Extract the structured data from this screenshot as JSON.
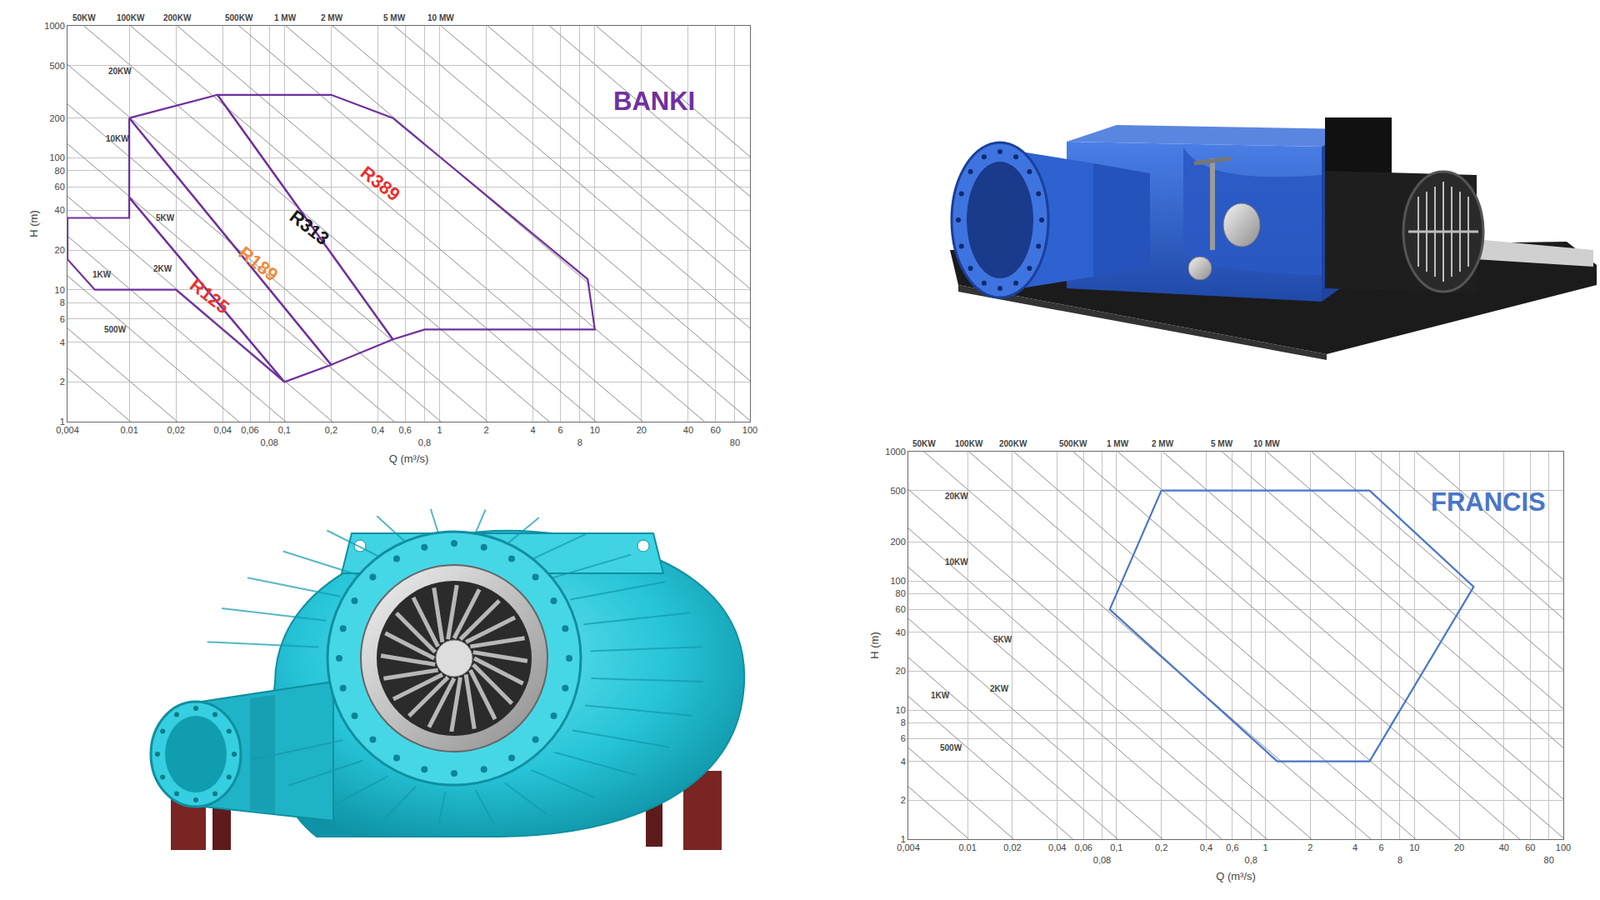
{
  "chart_data": [
    {
      "type": "line",
      "title": "BANKI",
      "color": "#7030a0",
      "xlabel": "Q (m³/s)",
      "ylabel": "H (m)",
      "log": true,
      "grid": true,
      "xlim": [
        0.004,
        100
      ],
      "ylim": [
        1,
        1000
      ],
      "xticks": [
        {
          "value": 0.004,
          "label": "0,004"
        },
        0.01,
        {
          "value": 0.02,
          "label": "0,02"
        },
        {
          "value": 0.04,
          "label": "0,04"
        },
        {
          "value": 0.06,
          "label": "0,06"
        },
        {
          "value": 0.08,
          "label": "0,08"
        },
        {
          "value": 0.1,
          "label": "0,1"
        },
        {
          "value": 0.2,
          "label": "0,2"
        },
        {
          "value": 0.4,
          "label": "0,4"
        },
        {
          "value": 0.6,
          "label": "0,6"
        },
        {
          "value": 0.8,
          "label": "0,8"
        },
        1,
        2,
        4,
        6,
        8,
        10,
        20,
        40,
        60,
        80,
        100
      ],
      "yticks": [
        1,
        2,
        4,
        6,
        8,
        10,
        20,
        40,
        60,
        80,
        100,
        200,
        500,
        1000
      ],
      "power_lines": [
        {
          "x": [
            1.02e-05,
            0.0102
          ],
          "y": [
            1000,
            1
          ]
        },
        {
          "x": [
            2.04e-05,
            0.0204
          ],
          "y": [
            1000,
            1
          ]
        },
        {
          "label": "500W",
          "x": [
            5.1e-05,
            0.051
          ],
          "y": [
            1000,
            1
          ],
          "label_at": [
            0.0081,
            5
          ]
        },
        {
          "label": "1KW",
          "x": [
            0.000102,
            0.102
          ],
          "y": [
            1000,
            1
          ],
          "label_at": [
            0.0067,
            13
          ]
        },
        {
          "label": "2KW",
          "x": [
            0.000204,
            0.204
          ],
          "y": [
            1000,
            1
          ],
          "label_at": [
            0.0165,
            14.5
          ]
        },
        {
          "label": "5KW",
          "x": [
            0.00051,
            0.51
          ],
          "y": [
            1000,
            1
          ],
          "label_at": [
            0.017,
            35
          ]
        },
        {
          "label": "10KW",
          "x": [
            0.00102,
            1.02
          ],
          "y": [
            1000,
            1
          ],
          "label_at": [
            0.0084,
            140
          ]
        },
        {
          "label": "20KW",
          "x": [
            0.00204,
            2.04
          ],
          "y": [
            1000,
            1
          ],
          "label_at": [
            0.0087,
            450
          ]
        },
        {
          "label": "50KW",
          "x": [
            0.0051,
            5.1
          ],
          "y": [
            1000,
            1
          ],
          "label_at": [
            0.0051,
            1000
          ]
        },
        {
          "label": "100KW",
          "x": [
            0.0102,
            10.2
          ],
          "y": [
            1000,
            1
          ],
          "label_at": [
            0.0102,
            1000
          ]
        },
        {
          "label": "200KW",
          "x": [
            0.0204,
            20.4
          ],
          "y": [
            1000,
            1
          ],
          "label_at": [
            0.0204,
            1000
          ]
        },
        {
          "label": "500KW",
          "x": [
            0.051,
            51
          ],
          "y": [
            1000,
            1
          ],
          "label_at": [
            0.051,
            1000
          ]
        },
        {
          "label": "1 MW",
          "x": [
            0.102,
            102
          ],
          "y": [
            1000,
            1
          ],
          "label_at": [
            0.102,
            1000
          ]
        },
        {
          "label": "2 MW",
          "x": [
            0.204,
            204
          ],
          "y": [
            1000,
            1
          ],
          "label_at": [
            0.204,
            1000
          ]
        },
        {
          "label": "5 MW",
          "x": [
            0.51,
            510
          ],
          "y": [
            1000,
            1
          ],
          "label_at": [
            0.51,
            1000
          ]
        },
        {
          "label": "10 MW",
          "x": [
            1.02,
            1020
          ],
          "y": [
            1000,
            1
          ],
          "label_at": [
            1.02,
            1000
          ]
        },
        {
          "x": [
            2.04,
            2040
          ],
          "y": [
            1000,
            1
          ]
        },
        {
          "x": [
            5.1,
            5100
          ],
          "y": [
            1000,
            1
          ]
        },
        {
          "x": [
            10.2,
            10200
          ],
          "y": [
            1000,
            1
          ]
        }
      ],
      "series": [
        {
          "name": "R125",
          "x": [
            0.004,
            0.01,
            0.01,
            0.1,
            0.02,
            0.006,
            0.004
          ],
          "y": [
            35,
            35,
            50,
            2,
            10,
            10,
            17
          ],
          "label": {
            "x": 0.033,
            "y": 8.9,
            "color": "#e8312f"
          }
        },
        {
          "name": "R189",
          "x": [
            0.01,
            0.01,
            0.2,
            0.1
          ],
          "y": [
            50,
            200,
            2.7,
            2
          ],
          "label": {
            "x": 0.068,
            "y": 15.8,
            "color": "#f08a3c"
          }
        },
        {
          "name": "R313",
          "x": [
            0.01,
            0.037,
            0.5,
            0.2
          ],
          "y": [
            200,
            300,
            4.2,
            2.7
          ],
          "label": {
            "x": 0.146,
            "y": 29.5,
            "color": "#1a1a1a"
          }
        },
        {
          "name": "R389",
          "x": [
            0.037,
            0.2,
            0.5,
            9,
            10,
            0.8,
            0.5
          ],
          "y": [
            300,
            300,
            200,
            12,
            5,
            5,
            4.2
          ],
          "label": {
            "x": 0.417,
            "y": 63.5,
            "color": "#e8312f"
          }
        }
      ]
    },
    {
      "type": "line",
      "title": "FRANCIS",
      "color": "#4a76c8",
      "xlabel": "Q (m³/s)",
      "ylabel": "H (m)",
      "log": true,
      "grid": true,
      "xlim": [
        0.004,
        100
      ],
      "ylim": [
        1,
        1000
      ],
      "xticks": [
        {
          "value": 0.004,
          "label": "0,004"
        },
        0.01,
        {
          "value": 0.02,
          "label": "0,02"
        },
        {
          "value": 0.04,
          "label": "0,04"
        },
        {
          "value": 0.06,
          "label": "0,06"
        },
        {
          "value": 0.08,
          "label": "0,08"
        },
        {
          "value": 0.1,
          "label": "0,1"
        },
        {
          "value": 0.2,
          "label": "0,2"
        },
        {
          "value": 0.4,
          "label": "0,4"
        },
        {
          "value": 0.6,
          "label": "0,6"
        },
        {
          "value": 0.8,
          "label": "0,8"
        },
        1,
        2,
        4,
        6,
        8,
        10,
        20,
        40,
        60,
        80,
        100
      ],
      "yticks": [
        1,
        2,
        4,
        6,
        8,
        10,
        20,
        40,
        60,
        80,
        100,
        200,
        500,
        1000
      ],
      "power_lines": [
        {
          "x": [
            1.02e-05,
            0.0102
          ],
          "y": [
            1000,
            1
          ]
        },
        {
          "x": [
            2.04e-05,
            0.0204
          ],
          "y": [
            1000,
            1
          ]
        },
        {
          "label": "500W",
          "x": [
            5.1e-05,
            0.051
          ],
          "y": [
            1000,
            1
          ],
          "label_at": [
            0.0078,
            5.1
          ]
        },
        {
          "label": "1KW",
          "x": [
            0.000102,
            0.102
          ],
          "y": [
            1000,
            1
          ],
          "label_at": [
            0.0066,
            13
          ]
        },
        {
          "label": "2KW",
          "x": [
            0.000204,
            0.204
          ],
          "y": [
            1000,
            1
          ],
          "label_at": [
            0.0165,
            14.6
          ]
        },
        {
          "label": "5KW",
          "x": [
            0.00051,
            0.51
          ],
          "y": [
            1000,
            1
          ],
          "label_at": [
            0.0173,
            35
          ]
        },
        {
          "label": "10KW",
          "x": [
            0.00102,
            1.02
          ],
          "y": [
            1000,
            1
          ],
          "label_at": [
            0.0084,
            140
          ]
        },
        {
          "label": "20KW",
          "x": [
            0.00204,
            2.04
          ],
          "y": [
            1000,
            1
          ],
          "label_at": [
            0.0084,
            450
          ]
        },
        {
          "label": "50KW",
          "x": [
            0.0051,
            5.1
          ],
          "y": [
            1000,
            1
          ],
          "label_at": [
            0.0051,
            1000
          ]
        },
        {
          "label": "100KW",
          "x": [
            0.0102,
            10.2
          ],
          "y": [
            1000,
            1
          ],
          "label_at": [
            0.0102,
            1000
          ]
        },
        {
          "label": "200KW",
          "x": [
            0.0204,
            20.4
          ],
          "y": [
            1000,
            1
          ],
          "label_at": [
            0.0204,
            1000
          ]
        },
        {
          "label": "500KW",
          "x": [
            0.051,
            51
          ],
          "y": [
            1000,
            1
          ],
          "label_at": [
            0.051,
            1000
          ]
        },
        {
          "label": "1 MW",
          "x": [
            0.102,
            102
          ],
          "y": [
            1000,
            1
          ],
          "label_at": [
            0.102,
            1000
          ]
        },
        {
          "label": "2 MW",
          "x": [
            0.204,
            204
          ],
          "y": [
            1000,
            1
          ],
          "label_at": [
            0.204,
            1000
          ]
        },
        {
          "label": "5 MW",
          "x": [
            0.51,
            510
          ],
          "y": [
            1000,
            1
          ],
          "label_at": [
            0.51,
            1000
          ]
        },
        {
          "label": "10 MW",
          "x": [
            1.02,
            1020
          ],
          "y": [
            1000,
            1
          ],
          "label_at": [
            1.02,
            1000
          ]
        },
        {
          "x": [
            2.04,
            2040
          ],
          "y": [
            1000,
            1
          ]
        },
        {
          "x": [
            5.1,
            5100
          ],
          "y": [
            1000,
            1
          ]
        },
        {
          "x": [
            10.2,
            10200
          ],
          "y": [
            1000,
            1
          ]
        }
      ],
      "series": [
        {
          "x": [
            0.2,
            5,
            25,
            5,
            1.2,
            0.09
          ],
          "y": [
            500,
            500,
            90,
            4,
            4,
            60
          ]
        }
      ]
    }
  ]
}
